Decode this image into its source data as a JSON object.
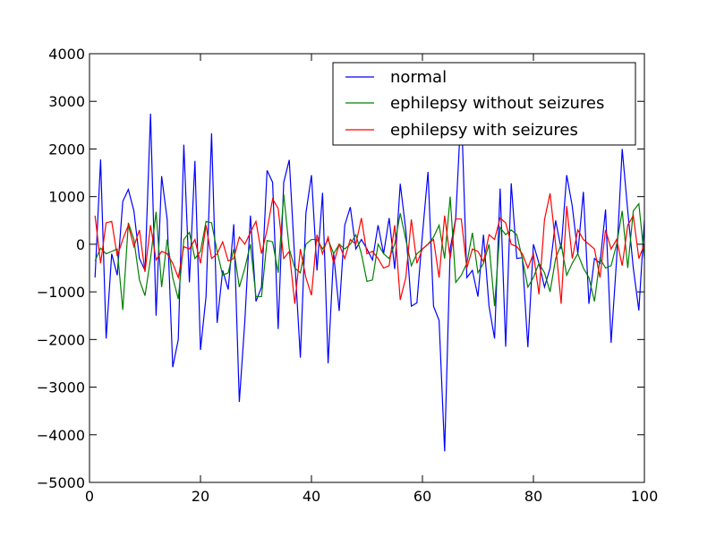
{
  "chart_data": {
    "type": "line",
    "xlim": [
      0,
      100
    ],
    "ylim": [
      -5000,
      4000
    ],
    "xticks": [
      "0",
      "20",
      "40",
      "60",
      "80",
      "100"
    ],
    "yticks": [
      "4000",
      "3000",
      "2000",
      "1000",
      "0",
      "−1000",
      "−2000",
      "−3000",
      "−4000",
      "−5000"
    ],
    "grid": false,
    "legend_position": "top-right",
    "x": [
      1,
      2,
      3,
      4,
      5,
      6,
      7,
      8,
      9,
      10,
      11,
      12,
      13,
      14,
      15,
      16,
      17,
      18,
      19,
      20,
      21,
      22,
      23,
      24,
      25,
      26,
      27,
      28,
      29,
      30,
      31,
      32,
      33,
      34,
      35,
      36,
      37,
      38,
      39,
      40,
      41,
      42,
      43,
      44,
      45,
      46,
      47,
      48,
      49,
      50,
      51,
      52,
      53,
      54,
      55,
      56,
      57,
      58,
      59,
      60,
      61,
      62,
      63,
      64,
      65,
      66,
      67,
      68,
      69,
      70,
      71,
      72,
      73,
      74,
      75,
      76,
      77,
      78,
      79,
      80,
      81,
      82,
      83,
      84,
      85,
      86,
      87,
      88,
      89,
      90,
      91,
      92,
      93,
      94,
      95,
      96,
      97,
      98,
      99,
      100
    ],
    "series": [
      {
        "name": "normal",
        "color": "#0000ff",
        "values": [
          -700,
          1780,
          -1980,
          -200,
          -650,
          900,
          1150,
          700,
          -300,
          -550,
          2740,
          -1500,
          1430,
          520,
          -2580,
          -2000,
          2090,
          -800,
          1750,
          -2220,
          -1100,
          2330,
          -1650,
          -550,
          -950,
          420,
          -3310,
          -1600,
          600,
          -1200,
          -900,
          1550,
          1300,
          -1780,
          1300,
          1770,
          -350,
          -2380,
          650,
          1450,
          -550,
          1080,
          -2500,
          -200,
          -1400,
          400,
          780,
          -100,
          100,
          -100,
          -330,
          400,
          -200,
          550,
          -520,
          1270,
          300,
          -1300,
          -1230,
          200,
          1520,
          -1300,
          -1600,
          -4350,
          -100,
          550,
          2900,
          -700,
          -550,
          -1100,
          200,
          -1300,
          -1980,
          1170,
          -2150,
          1280,
          -300,
          -280,
          -2160,
          0,
          -400,
          -900,
          -500,
          500,
          -100,
          1450,
          800,
          -200,
          1100,
          -1250,
          -300,
          -400,
          730,
          -2070,
          -300,
          2000,
          700,
          -500,
          -1390,
          500
        ]
      },
      {
        "name": "ephilepsy without seizures",
        "color": "#008000",
        "values": [
          -350,
          -80,
          -200,
          -150,
          -100,
          -1380,
          450,
          100,
          -750,
          -1080,
          -300,
          680,
          -900,
          100,
          -700,
          -1150,
          100,
          250,
          -300,
          -150,
          480,
          450,
          -150,
          -650,
          -600,
          -100,
          -900,
          -500,
          0,
          -1100,
          -1100,
          80,
          50,
          -600,
          1050,
          -100,
          -500,
          -600,
          0,
          100,
          100,
          -100,
          100,
          -200,
          0,
          -100,
          0,
          200,
          -200,
          -780,
          -750,
          0,
          -200,
          -300,
          0,
          650,
          100,
          -450,
          -200,
          -100,
          0,
          150,
          400,
          -300,
          1000,
          -800,
          -650,
          -400,
          240,
          -600,
          -400,
          0,
          -1300,
          350,
          200,
          300,
          200,
          -300,
          -900,
          -700,
          -400,
          -600,
          -1000,
          -300,
          0,
          -650,
          -400,
          -200,
          -500,
          -700,
          -1200,
          -300,
          -500,
          -450,
          0,
          700,
          -500,
          700,
          850,
          -300
        ]
      },
      {
        "name": "ephilepsy with seizures",
        "color": "#ff0000",
        "values": [
          600,
          -400,
          450,
          480,
          -250,
          100,
          400,
          -50,
          300,
          -580,
          400,
          -330,
          -150,
          -200,
          -400,
          -700,
          -50,
          -100,
          100,
          -400,
          400,
          -300,
          -200,
          50,
          -350,
          -300,
          150,
          0,
          250,
          480,
          -200,
          300,
          950,
          750,
          -300,
          -150,
          -1250,
          -100,
          -700,
          -1070,
          200,
          -200,
          150,
          -400,
          0,
          -300,
          100,
          0,
          550,
          -200,
          -150,
          -300,
          -500,
          -450,
          400,
          -1170,
          -700,
          520,
          -400,
          -100,
          0,
          100,
          -700,
          600,
          -300,
          530,
          530,
          -500,
          -100,
          -150,
          -370,
          200,
          100,
          550,
          450,
          0,
          -50,
          -200,
          -500,
          -200,
          -1050,
          520,
          1070,
          0,
          -1250,
          800,
          -300,
          300,
          100,
          0,
          -100,
          -700,
          300,
          -100,
          100,
          -450,
          400,
          600,
          -300,
          0
        ]
      }
    ]
  }
}
